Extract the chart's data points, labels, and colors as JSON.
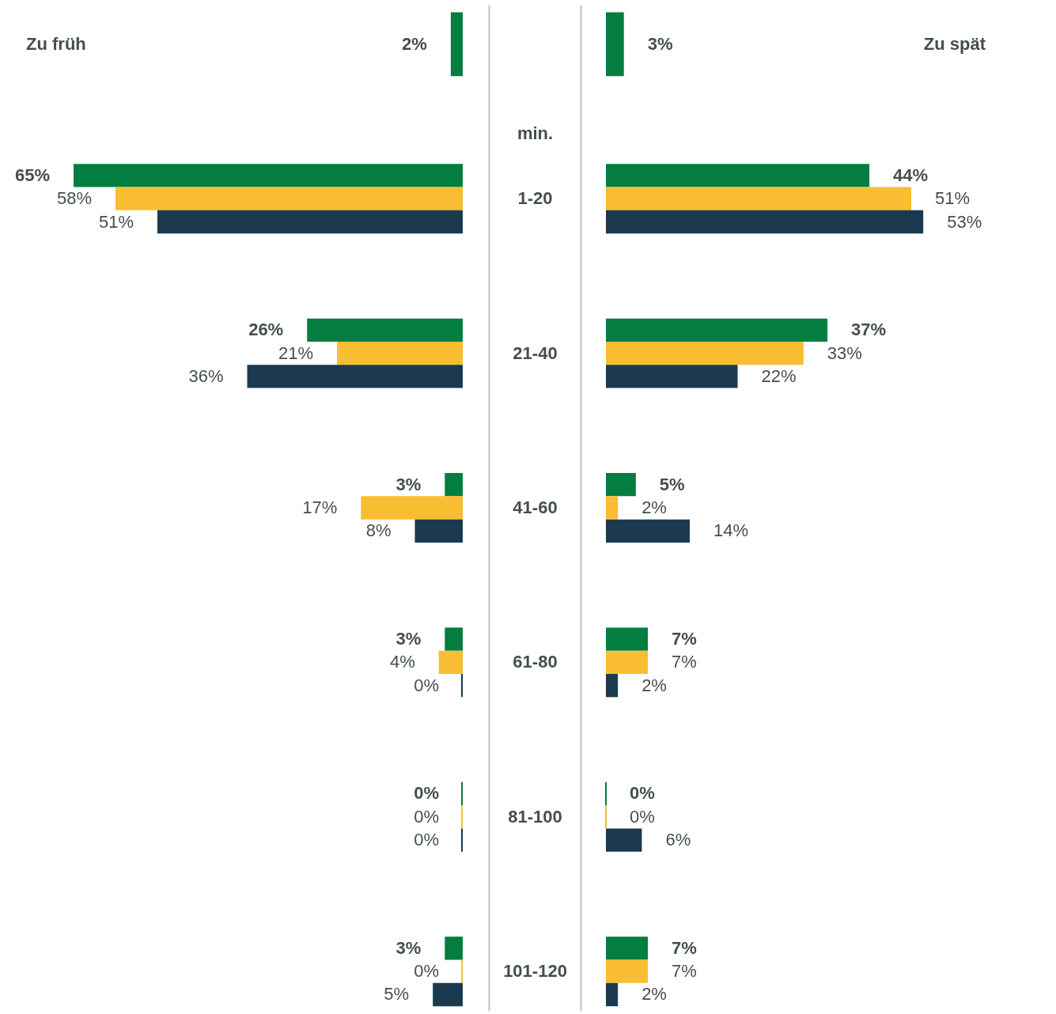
{
  "chart_data": [
    {
      "type": "bar",
      "orientation": "horizontal",
      "title": "Zu früh",
      "categories": [
        null,
        "1-20",
        "21-40",
        "41-60",
        "61-80",
        "81-100",
        "101-120"
      ],
      "tick_labels": false,
      "series": [
        {
          "color": "#037e40",
          "values": [
            2,
            65,
            26,
            3,
            3,
            0,
            3
          ],
          "value_labels": [
            "2%",
            "65%",
            "26%",
            "3%",
            "3%",
            "0%",
            "3%"
          ]
        },
        {
          "color": "#f9bd31",
          "values": [
            null,
            58,
            21,
            17,
            4,
            0,
            0
          ],
          "value_labels": [
            null,
            "58%",
            "21%",
            "17%",
            "4%",
            "0%",
            "0%"
          ]
        },
        {
          "color": "#1b3a4f",
          "values": [
            null,
            51,
            36,
            8,
            0,
            0,
            5
          ],
          "value_labels": [
            null,
            "51%",
            "36%",
            "8%",
            "0%",
            "0%",
            "5%"
          ]
        }
      ]
    },
    {
      "type": "bar",
      "orientation": "horizontal",
      "title": "Zu spät",
      "ylabel": "min.",
      "categories": [
        null,
        "1-20",
        "21-40",
        "41-60",
        "61-80",
        "81-100",
        "101-120"
      ],
      "tick_labels": "y",
      "series": [
        {
          "color": "#037e40",
          "values": [
            3,
            44,
            37,
            5,
            7,
            0,
            7
          ],
          "value_labels": [
            "3%",
            "44%",
            "37%",
            "5%",
            "7%",
            "0%",
            "7%"
          ]
        },
        {
          "color": "#f9bd31",
          "values": [
            null,
            51,
            33,
            2,
            7,
            0,
            7
          ],
          "value_labels": [
            null,
            "51%",
            "33%",
            "2%",
            "7%",
            "0%",
            "7%"
          ]
        },
        {
          "color": "#1b3a4f",
          "values": [
            null,
            53,
            22,
            14,
            2,
            6,
            2
          ],
          "value_labels": [
            null,
            "53%",
            "22%",
            "14%",
            "2%",
            "6%",
            "2%"
          ]
        }
      ]
    }
  ]
}
